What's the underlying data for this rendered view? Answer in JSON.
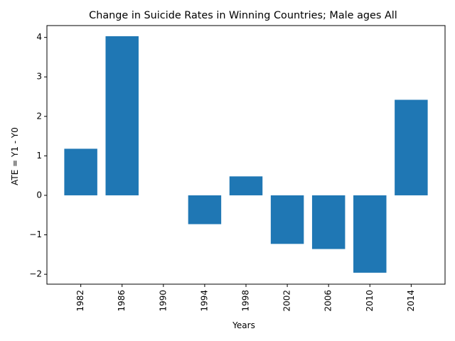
{
  "chart_data": {
    "type": "bar",
    "title": "Change in Suicide Rates in Winning Countries; Male ages All",
    "xlabel": "Years",
    "ylabel": "ATE = Y1 - Y0",
    "categories": [
      "1982",
      "1986",
      "1990",
      "1994",
      "1998",
      "2002",
      "2006",
      "2010",
      "2014"
    ],
    "values": [
      1.18,
      4.03,
      0.0,
      -0.73,
      0.48,
      -1.23,
      -1.36,
      -1.96,
      2.42
    ],
    "ylim": [
      -2.25,
      4.3
    ],
    "yticks": [
      -2,
      -1,
      0,
      1,
      2,
      3,
      4
    ],
    "ytick_labels": [
      "−2",
      "−1",
      "0",
      "1",
      "2",
      "3",
      "4"
    ],
    "bar_color": "#1f77b4",
    "grid": false,
    "legend": "none"
  }
}
